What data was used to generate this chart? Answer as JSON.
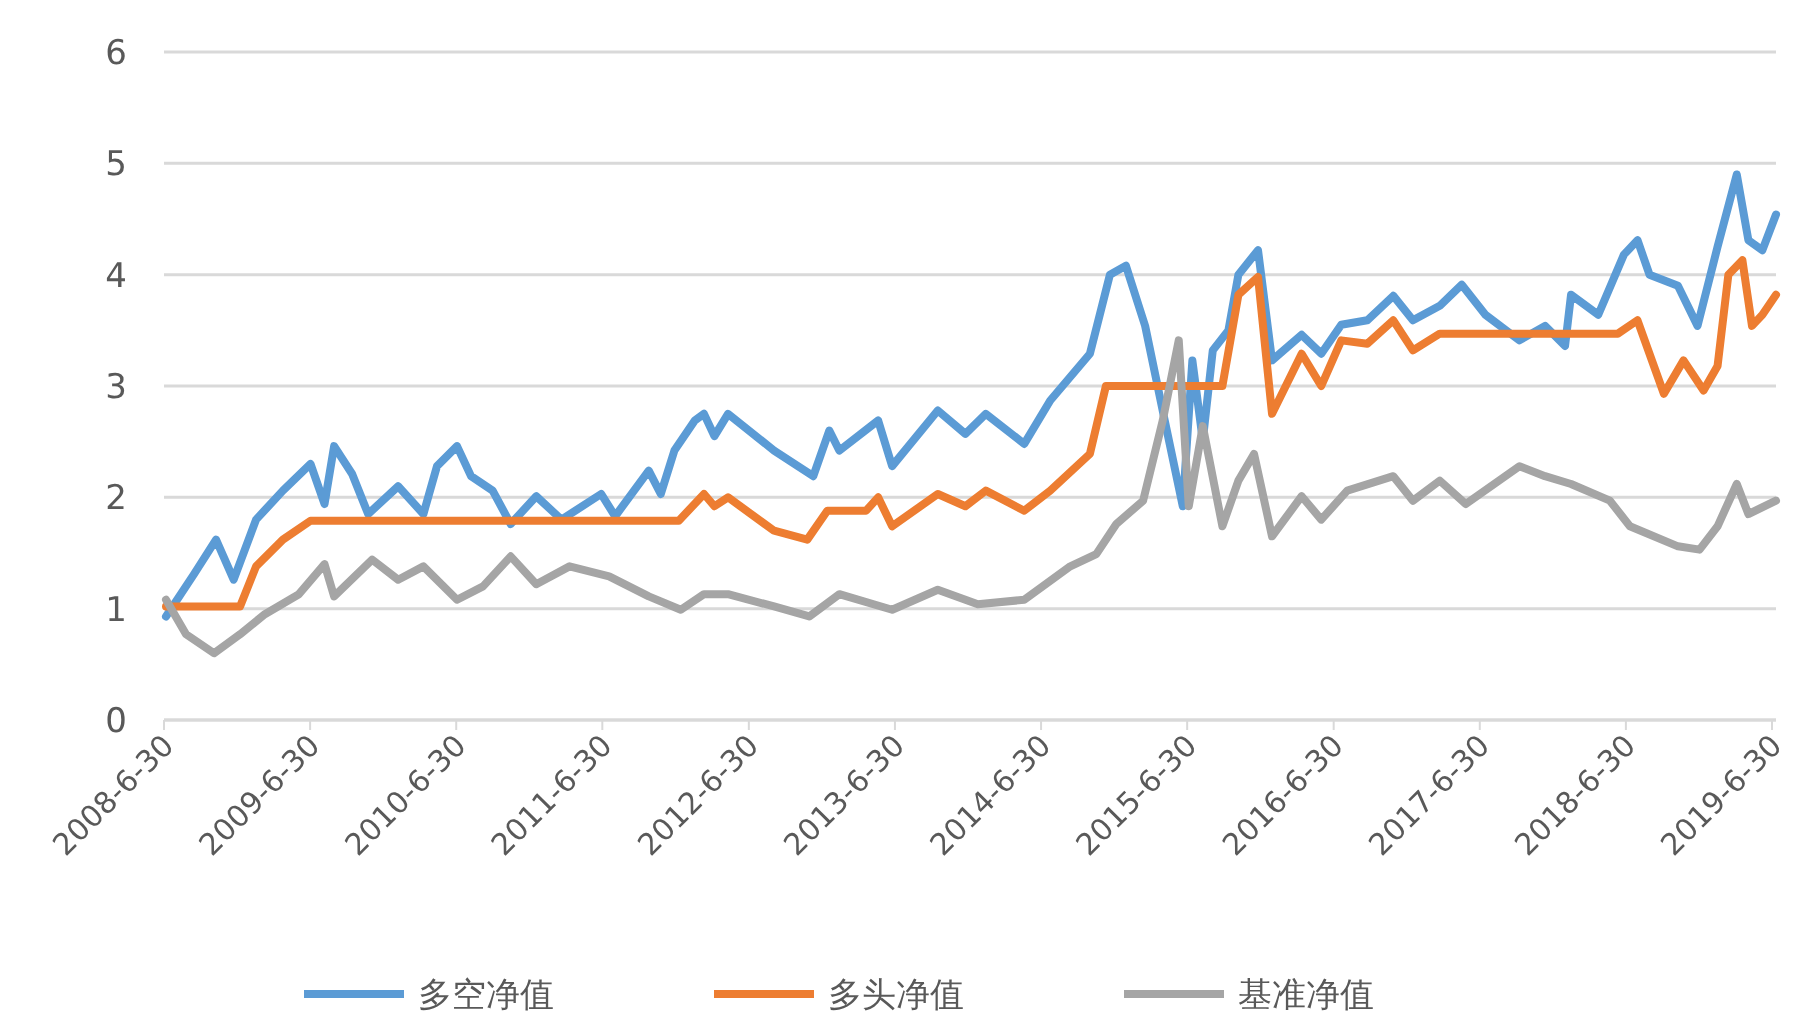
{
  "chart_data": {
    "type": "line",
    "xlim": [
      "2008-06-30",
      "2019-07-10"
    ],
    "ylim": [
      0,
      6
    ],
    "yticks": [
      0,
      1,
      2,
      3,
      4,
      5,
      6
    ],
    "xticks": [
      {
        "value": "2008-06-30",
        "label": "2008-6-30"
      },
      {
        "value": "2009-06-30",
        "label": "2009-6-30"
      },
      {
        "value": "2010-06-30",
        "label": "2010-6-30"
      },
      {
        "value": "2011-06-30",
        "label": "2011-6-30"
      },
      {
        "value": "2012-06-30",
        "label": "2012-6-30"
      },
      {
        "value": "2013-06-30",
        "label": "2013-6-30"
      },
      {
        "value": "2014-06-30",
        "label": "2014-6-30"
      },
      {
        "value": "2015-06-30",
        "label": "2015-6-30"
      },
      {
        "value": "2016-06-30",
        "label": "2016-6-30"
      },
      {
        "value": "2017-06-30",
        "label": "2017-6-30"
      },
      {
        "value": "2018-06-30",
        "label": "2018-6-30"
      },
      {
        "value": "2019-06-30",
        "label": "2019-6-30"
      }
    ],
    "grid": "y",
    "legend": "bottom",
    "marker": "none",
    "line_style": "solid",
    "series": [
      {
        "name": "多空净值",
        "color": "#5b9bd5",
        "x": [
          "2008-07-05",
          "2008-09-13",
          "2008-11-07",
          "2008-12-21",
          "2009-02-15",
          "2009-04-23",
          "2009-07-01",
          "2009-08-05",
          "2009-08-29",
          "2009-10-13",
          "2009-11-22",
          "2010-02-05",
          "2010-04-09",
          "2010-05-13",
          "2010-07-02",
          "2010-08-06",
          "2010-09-29",
          "2010-11-13",
          "2011-01-16",
          "2011-03-20",
          "2011-06-27",
          "2011-08-01",
          "2011-10-24",
          "2011-11-23",
          "2011-12-27",
          "2012-02-16",
          "2012-03-10",
          "2012-04-05",
          "2012-05-09",
          "2012-09-01",
          "2012-12-08",
          "2013-01-17",
          "2013-02-11",
          "2013-05-19",
          "2013-06-23",
          "2013-10-15",
          "2013-12-23",
          "2014-02-12",
          "2014-05-19",
          "2014-07-23",
          "2014-10-30",
          "2014-12-19",
          "2015-01-28",
          "2015-03-17",
          "2015-05-05",
          "2015-06-19",
          "2015-07-13",
          "2015-08-08",
          "2015-09-02",
          "2015-10-11",
          "2015-11-05",
          "2015-12-24",
          "2016-01-28",
          "2016-04-11",
          "2016-05-30",
          "2016-07-19",
          "2016-09-22",
          "2016-11-26",
          "2017-01-14",
          "2017-03-22",
          "2017-05-16",
          "2017-07-14",
          "2017-10-07",
          "2017-12-10",
          "2018-01-29",
          "2018-02-13",
          "2018-04-22",
          "2018-06-25",
          "2018-07-29",
          "2018-08-28",
          "2018-11-07",
          "2018-12-26",
          "2019-02-14",
          "2019-04-03",
          "2019-05-02",
          "2019-06-06",
          "2019-07-10"
        ],
        "values": [
          0.93,
          1.31,
          1.62,
          1.26,
          1.8,
          2.06,
          2.3,
          1.94,
          2.46,
          2.21,
          1.85,
          2.1,
          1.85,
          2.28,
          2.46,
          2.19,
          2.06,
          1.76,
          2.01,
          1.8,
          2.03,
          1.83,
          2.24,
          2.03,
          2.42,
          2.69,
          2.75,
          2.55,
          2.75,
          2.42,
          2.19,
          2.6,
          2.42,
          2.69,
          2.28,
          2.78,
          2.57,
          2.75,
          2.48,
          2.87,
          3.29,
          4.0,
          4.08,
          3.54,
          2.69,
          1.92,
          3.23,
          2.51,
          3.32,
          3.5,
          4.0,
          4.22,
          3.23,
          3.46,
          3.29,
          3.55,
          3.59,
          3.81,
          3.59,
          3.72,
          3.91,
          3.64,
          3.41,
          3.54,
          3.36,
          3.82,
          3.64,
          4.18,
          4.31,
          4.0,
          3.9,
          3.54,
          4.25,
          4.9,
          4.31,
          4.22,
          4.54
        ]
      },
      {
        "name": "多头净值",
        "color": "#ed7d31",
        "x": [
          "2008-07-05",
          "2009-01-06",
          "2009-02-15",
          "2009-04-23",
          "2009-07-01",
          "2012-01-07",
          "2012-03-10",
          "2012-04-05",
          "2012-05-09",
          "2012-09-01",
          "2012-11-23",
          "2013-01-12",
          "2013-04-19",
          "2013-05-19",
          "2013-06-23",
          "2013-10-15",
          "2013-12-23",
          "2014-02-12",
          "2014-05-19",
          "2014-07-23",
          "2014-10-30",
          "2014-12-09",
          "2015-09-26",
          "2015-11-05",
          "2015-12-24",
          "2016-01-28",
          "2016-04-11",
          "2016-05-30",
          "2016-07-19",
          "2016-09-22",
          "2016-11-26",
          "2017-01-14",
          "2017-03-22",
          "2018-06-10",
          "2018-07-29",
          "2018-10-03",
          "2018-11-21",
          "2019-01-10",
          "2019-02-14",
          "2019-03-13",
          "2019-04-17",
          "2019-05-11",
          "2019-06-06",
          "2019-07-10"
        ],
        "values": [
          1.02,
          1.02,
          1.38,
          1.62,
          1.79,
          1.79,
          2.03,
          1.92,
          2.0,
          1.7,
          1.62,
          1.88,
          1.88,
          2.0,
          1.74,
          2.03,
          1.92,
          2.06,
          1.88,
          2.06,
          2.39,
          3.0,
          3.0,
          3.82,
          3.98,
          2.75,
          3.29,
          3.0,
          3.41,
          3.38,
          3.59,
          3.32,
          3.47,
          3.47,
          3.59,
          2.93,
          3.23,
          2.96,
          3.18,
          4.0,
          4.13,
          3.54,
          3.64,
          3.82
        ]
      },
      {
        "name": "基准净值",
        "color": "#a5a5a5",
        "x": [
          "2008-07-05",
          "2008-08-24",
          "2008-11-02",
          "2009-01-06",
          "2009-03-09",
          "2009-06-02",
          "2009-08-05",
          "2009-08-29",
          "2009-12-02",
          "2010-02-05",
          "2010-04-09",
          "2010-07-02",
          "2010-09-05",
          "2010-11-13",
          "2011-01-16",
          "2011-04-09",
          "2011-07-17",
          "2011-10-24",
          "2012-01-12",
          "2012-03-10",
          "2012-05-09",
          "2012-09-01",
          "2012-11-28",
          "2013-02-11",
          "2013-06-23",
          "2013-10-15",
          "2014-01-23",
          "2014-05-19",
          "2014-09-11",
          "2014-11-15",
          "2015-01-04",
          "2015-03-12",
          "2015-04-30",
          "2015-06-09",
          "2015-07-04",
          "2015-08-08",
          "2015-09-26",
          "2015-11-05",
          "2015-12-14",
          "2016-01-28",
          "2016-04-11",
          "2016-05-30",
          "2016-08-03",
          "2016-11-26",
          "2017-01-14",
          "2017-03-22",
          "2017-05-26",
          "2017-10-07",
          "2017-12-10",
          "2018-02-13",
          "2018-05-21",
          "2018-07-10",
          "2018-11-07",
          "2018-12-31",
          "2019-02-14",
          "2019-04-03",
          "2019-05-02",
          "2019-07-10"
        ],
        "values": [
          1.08,
          0.77,
          0.6,
          0.77,
          0.95,
          1.13,
          1.4,
          1.11,
          1.44,
          1.26,
          1.38,
          1.08,
          1.2,
          1.47,
          1.22,
          1.38,
          1.29,
          1.11,
          0.99,
          1.13,
          1.13,
          1.02,
          0.93,
          1.13,
          0.99,
          1.17,
          1.04,
          1.08,
          1.38,
          1.49,
          1.76,
          1.97,
          2.69,
          3.41,
          1.92,
          2.64,
          1.74,
          2.15,
          2.39,
          1.65,
          2.01,
          1.8,
          2.06,
          2.19,
          1.97,
          2.15,
          1.94,
          2.28,
          2.19,
          2.12,
          1.97,
          1.74,
          1.56,
          1.53,
          1.74,
          2.12,
          1.85,
          1.97
        ]
      }
    ]
  }
}
